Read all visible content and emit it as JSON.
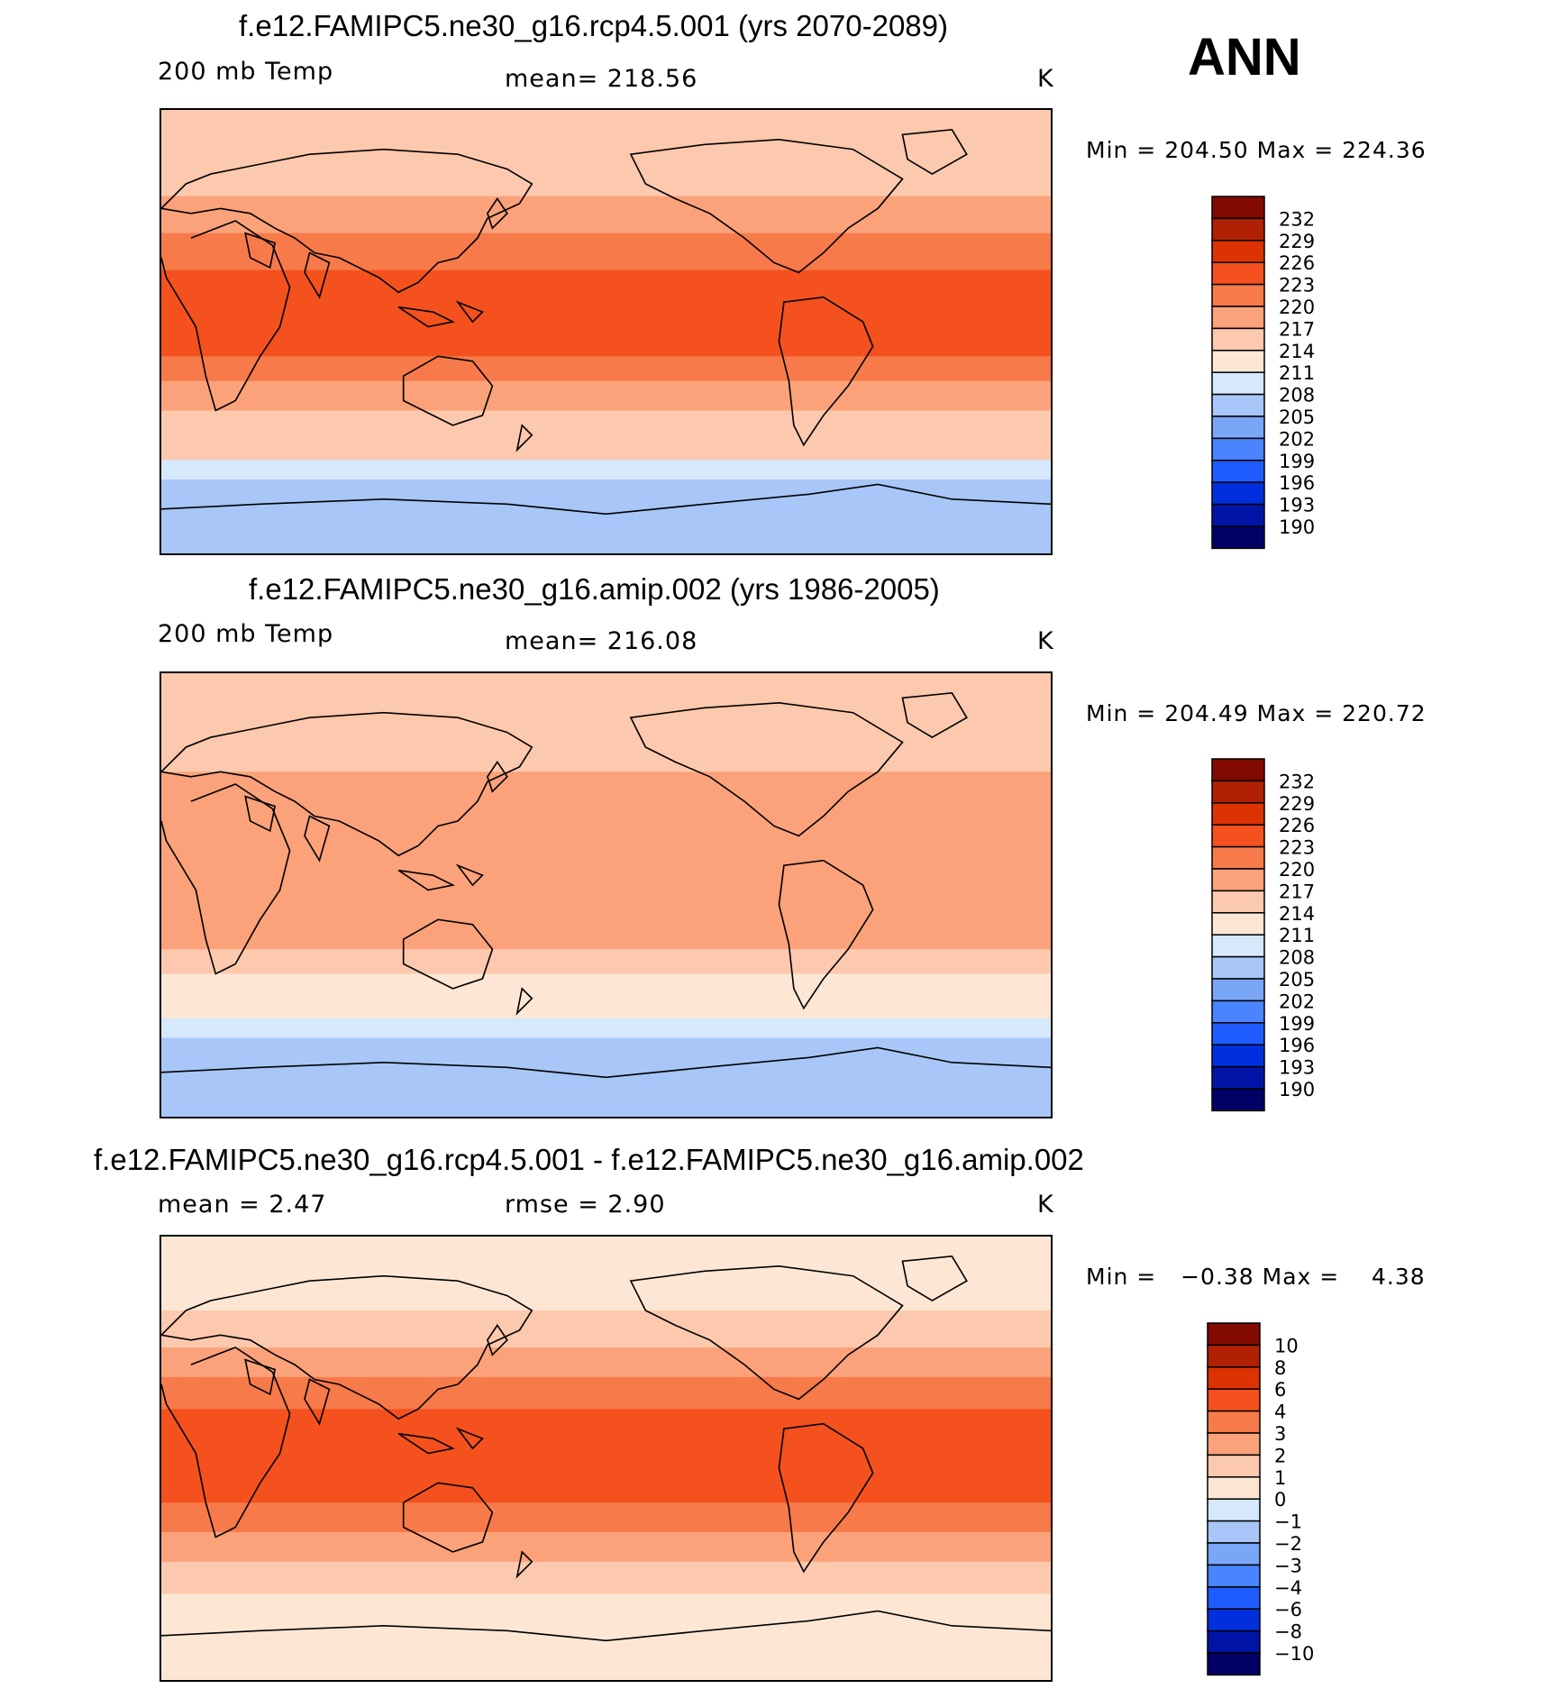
{
  "season": "ANN",
  "panels": [
    {
      "title": "f.e12.FAMIPC5.ne30_g16.rcp4.5.001 (yrs 2070-2089)",
      "left_label": "200 mb Temp",
      "center_label": "mean= 218.56",
      "units": "K",
      "minmax": "Min = 204.50 Max = 224.36"
    },
    {
      "title": "f.e12.FAMIPC5.ne30_g16.amip.002 (yrs 1986-2005)",
      "left_label": "200 mb Temp",
      "center_label": "mean= 216.08",
      "units": "K",
      "minmax": "Min = 204.49 Max = 220.72"
    },
    {
      "title": "f.e12.FAMIPC5.ne30_g16.rcp4.5.001 - f.e12.FAMIPC5.ne30_g16.amip.002",
      "left_label": "mean =    2.47",
      "center_label": "rmse =    2.90",
      "units": "K",
      "minmax": "Min =   −0.38 Max =    4.38"
    }
  ],
  "colors": {
    "scale": [
      "#000066",
      "#0015a8",
      "#0030dd",
      "#1f5cff",
      "#4a85ff",
      "#7aa6f8",
      "#a8c6f8",
      "#d6e8fb",
      "#fde7d4",
      "#fcc9ae",
      "#fba27a",
      "#f77a4a",
      "#f4511e",
      "#dd3202",
      "#b02104",
      "#820a00"
    ]
  },
  "chart_data": [
    {
      "type": "heatmap",
      "title": "f.e12.FAMIPC5.ne30_g16.rcp4.5.001 (yrs 2070-2089)",
      "variable": "200 mb Temp",
      "units": "K",
      "mean": 218.56,
      "min": 204.5,
      "max": 224.36,
      "colorbar_levels": [
        232,
        229,
        226,
        223,
        220,
        217,
        214,
        211,
        208,
        205,
        202,
        199,
        196,
        193,
        190
      ],
      "colorbar_labels": [
        "232",
        "229",
        "226",
        "223",
        "220",
        "217",
        "214",
        "211",
        "208",
        "205",
        "202",
        "199",
        "196",
        "193",
        "190"
      ],
      "lat_bands": [
        {
          "lat_from": 90,
          "lat_to": 55,
          "value": 214
        },
        {
          "lat_from": 55,
          "lat_to": 40,
          "value": 217
        },
        {
          "lat_from": 40,
          "lat_to": 25,
          "value": 220
        },
        {
          "lat_from": 25,
          "lat_to": -10,
          "value": 223
        },
        {
          "lat_from": -10,
          "lat_to": -20,
          "value": 220
        },
        {
          "lat_from": -20,
          "lat_to": -32,
          "value": 217
        },
        {
          "lat_from": -32,
          "lat_to": -52,
          "value": 214
        },
        {
          "lat_from": -52,
          "lat_to": -60,
          "value": 208
        },
        {
          "lat_from": -60,
          "lat_to": -90,
          "value": 205
        }
      ]
    },
    {
      "type": "heatmap",
      "title": "f.e12.FAMIPC5.ne30_g16.amip.002 (yrs 1986-2005)",
      "variable": "200 mb Temp",
      "units": "K",
      "mean": 216.08,
      "min": 204.49,
      "max": 220.72,
      "colorbar_levels": [
        232,
        229,
        226,
        223,
        220,
        217,
        214,
        211,
        208,
        205,
        202,
        199,
        196,
        193,
        190
      ],
      "colorbar_labels": [
        "232",
        "229",
        "226",
        "223",
        "220",
        "217",
        "214",
        "211",
        "208",
        "205",
        "202",
        "199",
        "196",
        "193",
        "190"
      ],
      "lat_bands": [
        {
          "lat_from": 90,
          "lat_to": 50,
          "value": 214
        },
        {
          "lat_from": 50,
          "lat_to": 40,
          "value": 217
        },
        {
          "lat_from": 40,
          "lat_to": -22,
          "value": 217
        },
        {
          "lat_from": -22,
          "lat_to": -32,
          "value": 214
        },
        {
          "lat_from": -32,
          "lat_to": -50,
          "value": 211
        },
        {
          "lat_from": -50,
          "lat_to": -58,
          "value": 208
        },
        {
          "lat_from": -58,
          "lat_to": -90,
          "value": 205
        }
      ]
    },
    {
      "type": "heatmap",
      "title": "f.e12.FAMIPC5.ne30_g16.rcp4.5.001 - f.e12.FAMIPC5.ne30_g16.amip.002",
      "units": "K",
      "mean": 2.47,
      "rmse": 2.9,
      "min": -0.38,
      "max": 4.38,
      "colorbar_levels": [
        10,
        8,
        6,
        4,
        3,
        2,
        1,
        0,
        -1,
        -2,
        -3,
        -4,
        -6,
        -8,
        -10
      ],
      "colorbar_labels": [
        "10",
        "8",
        "6",
        "4",
        "3",
        "2",
        "1",
        "0",
        "−1",
        "−2",
        "−3",
        "−4",
        "−6",
        "−8",
        "−10"
      ],
      "lat_bands": [
        {
          "lat_from": 90,
          "lat_to": 60,
          "value": 0
        },
        {
          "lat_from": 60,
          "lat_to": 45,
          "value": 1
        },
        {
          "lat_from": 45,
          "lat_to": 33,
          "value": 2
        },
        {
          "lat_from": 33,
          "lat_to": 20,
          "value": 3
        },
        {
          "lat_from": 20,
          "lat_to": -18,
          "value": 4
        },
        {
          "lat_from": -18,
          "lat_to": -30,
          "value": 3
        },
        {
          "lat_from": -30,
          "lat_to": -42,
          "value": 2
        },
        {
          "lat_from": -42,
          "lat_to": -55,
          "value": 1
        },
        {
          "lat_from": -55,
          "lat_to": -90,
          "value": 0
        }
      ]
    }
  ]
}
